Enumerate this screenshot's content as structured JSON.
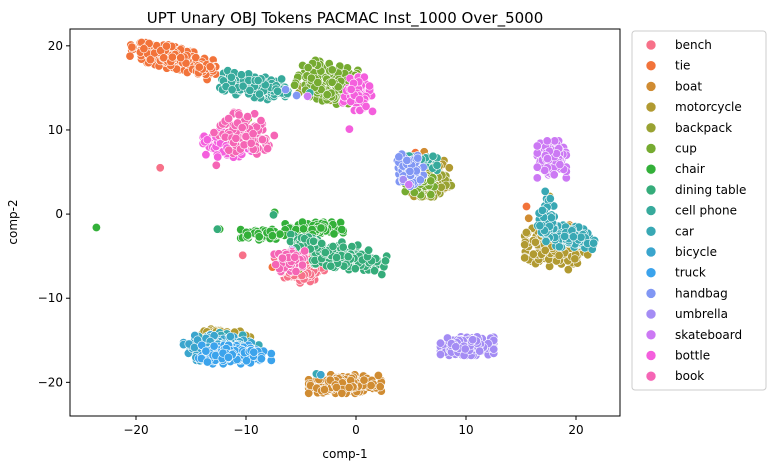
{
  "chart_data": {
    "type": "scatter",
    "title": "UPT Unary OBJ Tokens PACMAC Inst_1000 Over_5000",
    "xlabel": "comp-1",
    "ylabel": "comp-2",
    "xlim": [
      -26,
      24
    ],
    "ylim": [
      -24,
      22
    ],
    "xticks": [
      -20,
      -10,
      0,
      10,
      20
    ],
    "yticks": [
      -20,
      -10,
      0,
      10,
      20
    ],
    "grid": false,
    "legend_position": "outside-right",
    "series": [
      {
        "name": "bench",
        "color": "#f77189",
        "clusters": [
          {
            "x": -4.8,
            "y": -6.2,
            "sx": 0.9,
            "sy": 0.9,
            "n": 160,
            "angle": 0
          },
          {
            "x": -6.3,
            "y": -5.8,
            "sx": 0.5,
            "sy": 0.5,
            "n": 30,
            "angle": 0
          }
        ],
        "points": [
          {
            "x": -10.3,
            "y": -4.9
          },
          {
            "x": -17.8,
            "y": 5.5
          }
        ]
      },
      {
        "name": "tie",
        "color": "#f2733a",
        "clusters": [
          {
            "x": -16.8,
            "y": 18.6,
            "sx": 1.8,
            "sy": 0.6,
            "n": 220,
            "angle": -0.35
          },
          {
            "x": -13.8,
            "y": 17.1,
            "sx": 0.7,
            "sy": 0.3,
            "n": 30,
            "angle": 0
          }
        ],
        "points": [
          {
            "x": -5.8,
            "y": -2.9
          },
          {
            "x": -7.6,
            "y": -6.3
          },
          {
            "x": 5.4,
            "y": 7.3
          },
          {
            "x": 18.5,
            "y": 5.9
          },
          {
            "x": 15.5,
            "y": 0.9
          },
          {
            "x": -4.2,
            "y": -1.5
          }
        ]
      },
      {
        "name": "boat",
        "color": "#d08c32",
        "clusters": [
          {
            "x": -1.0,
            "y": -20.2,
            "sx": 1.5,
            "sy": 0.5,
            "n": 220,
            "angle": 0
          }
        ],
        "points": [
          {
            "x": 6.2,
            "y": 7.4
          },
          {
            "x": 19.4,
            "y": -1.3
          },
          {
            "x": 15.7,
            "y": -0.5
          }
        ]
      },
      {
        "name": "motorcycle",
        "color": "#b19a31",
        "clusters": [
          {
            "x": 18.2,
            "y": -3.8,
            "sx": 1.3,
            "sy": 1.1,
            "n": 260,
            "angle": 0
          },
          {
            "x": 6.5,
            "y": 4.3,
            "sx": 0.9,
            "sy": 1.0,
            "n": 140,
            "angle": 0
          },
          {
            "x": -11.8,
            "y": -14.3,
            "sx": 1.0,
            "sy": 0.3,
            "n": 40,
            "angle": 0
          }
        ],
        "points": [
          {
            "x": 19.3,
            "y": -6.6
          },
          {
            "x": 17.6,
            "y": 2.1
          }
        ]
      },
      {
        "name": "backpack",
        "color": "#99a232",
        "clusters": [
          {
            "x": 6.9,
            "y": 3.6,
            "sx": 0.8,
            "sy": 0.7,
            "n": 80,
            "angle": 0
          },
          {
            "x": -2.8,
            "y": 15.5,
            "sx": 1.2,
            "sy": 0.9,
            "n": 80,
            "angle": 0
          }
        ],
        "points": [
          {
            "x": -9.8,
            "y": 11.3
          },
          {
            "x": -5.2,
            "y": -6.6
          }
        ]
      },
      {
        "name": "cup",
        "color": "#76ab31",
        "clusters": [
          {
            "x": -2.5,
            "y": 15.6,
            "sx": 1.3,
            "sy": 1.0,
            "n": 200,
            "angle": -0.3
          },
          {
            "x": 5.8,
            "y": 3.6,
            "sx": 0.6,
            "sy": 0.6,
            "n": 40,
            "angle": 0
          }
        ],
        "points": [
          {
            "x": -6.9,
            "y": 15.2
          },
          {
            "x": -10.4,
            "y": 10.4
          }
        ]
      },
      {
        "name": "chair",
        "color": "#33b039",
        "clusters": [
          {
            "x": -3.8,
            "y": -1.8,
            "sx": 1.2,
            "sy": 0.4,
            "n": 120,
            "angle": 0
          },
          {
            "x": -8.5,
            "y": -2.4,
            "sx": 0.9,
            "sy": 0.3,
            "n": 50,
            "angle": 0
          }
        ],
        "points": [
          {
            "x": -23.6,
            "y": -1.6
          },
          {
            "x": -12.4,
            "y": -1.8
          },
          {
            "x": -7.4,
            "y": 0.2
          }
        ]
      },
      {
        "name": "dining table",
        "color": "#35ac7a",
        "clusters": [
          {
            "x": -0.8,
            "y": -5.0,
            "sx": 1.6,
            "sy": 0.7,
            "n": 220,
            "angle": -0.2
          },
          {
            "x": -4.8,
            "y": -3.5,
            "sx": 0.8,
            "sy": 0.5,
            "n": 60,
            "angle": 0
          }
        ],
        "points": [
          {
            "x": -12.6,
            "y": -1.8
          },
          {
            "x": -7.5,
            "y": -0.1
          }
        ]
      },
      {
        "name": "cell phone",
        "color": "#37aa9c",
        "clusters": [
          {
            "x": -9.2,
            "y": 15.2,
            "sx": 1.4,
            "sy": 0.6,
            "n": 200,
            "angle": -0.2
          },
          {
            "x": 5.6,
            "y": 6.3,
            "sx": 0.8,
            "sy": 0.5,
            "n": 50,
            "angle": 0
          },
          {
            "x": -12.6,
            "y": -14.9,
            "sx": 0.5,
            "sy": 0.3,
            "n": 25,
            "angle": 0
          }
        ],
        "points": [
          {
            "x": -4.2,
            "y": 14.4
          },
          {
            "x": 17.5,
            "y": 1.5
          }
        ]
      },
      {
        "name": "car",
        "color": "#38a8b4",
        "clusters": [
          {
            "x": 19.3,
            "y": -2.7,
            "sx": 1.1,
            "sy": 0.6,
            "n": 150,
            "angle": -0.2
          },
          {
            "x": 17.4,
            "y": -0.8,
            "sx": 0.4,
            "sy": 1.2,
            "n": 50,
            "angle": 0
          },
          {
            "x": -11.7,
            "y": -15.4,
            "sx": 1.3,
            "sy": 0.6,
            "n": 80,
            "angle": 0
          }
        ],
        "points": [
          {
            "x": 17.2,
            "y": 2.7
          },
          {
            "x": -3.6,
            "y": -19.0
          }
        ]
      },
      {
        "name": "bicycle",
        "color": "#3aa5cd",
        "clusters": [
          {
            "x": -12.6,
            "y": -15.9,
            "sx": 1.4,
            "sy": 0.7,
            "n": 200,
            "angle": 0
          }
        ],
        "points": [
          {
            "x": -3.2,
            "y": -19.1
          }
        ]
      },
      {
        "name": "truck",
        "color": "#3ba3ec",
        "clusters": [
          {
            "x": -11.0,
            "y": -16.7,
            "sx": 1.5,
            "sy": 0.5,
            "n": 200,
            "angle": 0
          }
        ],
        "points": [
          {
            "x": -8.6,
            "y": -17.2
          }
        ]
      },
      {
        "name": "handbag",
        "color": "#8197f4",
        "clusters": [
          {
            "x": 4.8,
            "y": 5.2,
            "sx": 0.6,
            "sy": 0.9,
            "n": 70,
            "angle": 0
          }
        ],
        "points": [
          {
            "x": 3.9,
            "y": 6.8
          },
          {
            "x": -6.4,
            "y": 14.8
          },
          {
            "x": -5.4,
            "y": 14.1
          }
        ]
      },
      {
        "name": "umbrella",
        "color": "#a48cf4",
        "clusters": [
          {
            "x": 10.1,
            "y": -15.7,
            "sx": 1.1,
            "sy": 0.5,
            "n": 220,
            "angle": 0
          }
        ],
        "points": [
          {
            "x": 4.3,
            "y": 4.1
          },
          {
            "x": -5.8,
            "y": -4.3
          }
        ]
      },
      {
        "name": "skateboard",
        "color": "#cc79f4",
        "clusters": [
          {
            "x": 17.8,
            "y": 6.5,
            "sx": 0.6,
            "sy": 1.0,
            "n": 150,
            "angle": 0
          }
        ],
        "points": [
          {
            "x": 4.8,
            "y": 3.5
          },
          {
            "x": -4.4,
            "y": 14.0
          }
        ]
      },
      {
        "name": "bottle",
        "color": "#f45fdd",
        "clusters": [
          {
            "x": 0.1,
            "y": 14.3,
            "sx": 0.6,
            "sy": 0.9,
            "n": 100,
            "angle": 0
          },
          {
            "x": -11.7,
            "y": 8.3,
            "sx": 1.0,
            "sy": 0.7,
            "n": 130,
            "angle": 0
          }
        ],
        "points": [
          {
            "x": 1.5,
            "y": 12.2
          },
          {
            "x": -0.6,
            "y": 10.1
          }
        ]
      },
      {
        "name": "book",
        "color": "#f565b5",
        "clusters": [
          {
            "x": -10.2,
            "y": 9.5,
            "sx": 1.0,
            "sy": 1.2,
            "n": 120,
            "angle": 0.6
          },
          {
            "x": -5.9,
            "y": -5.5,
            "sx": 0.7,
            "sy": 0.6,
            "n": 60,
            "angle": 0
          }
        ],
        "points": [
          {
            "x": -12.7,
            "y": 5.8
          },
          {
            "x": -7.3,
            "y": -6.0
          }
        ]
      }
    ]
  }
}
